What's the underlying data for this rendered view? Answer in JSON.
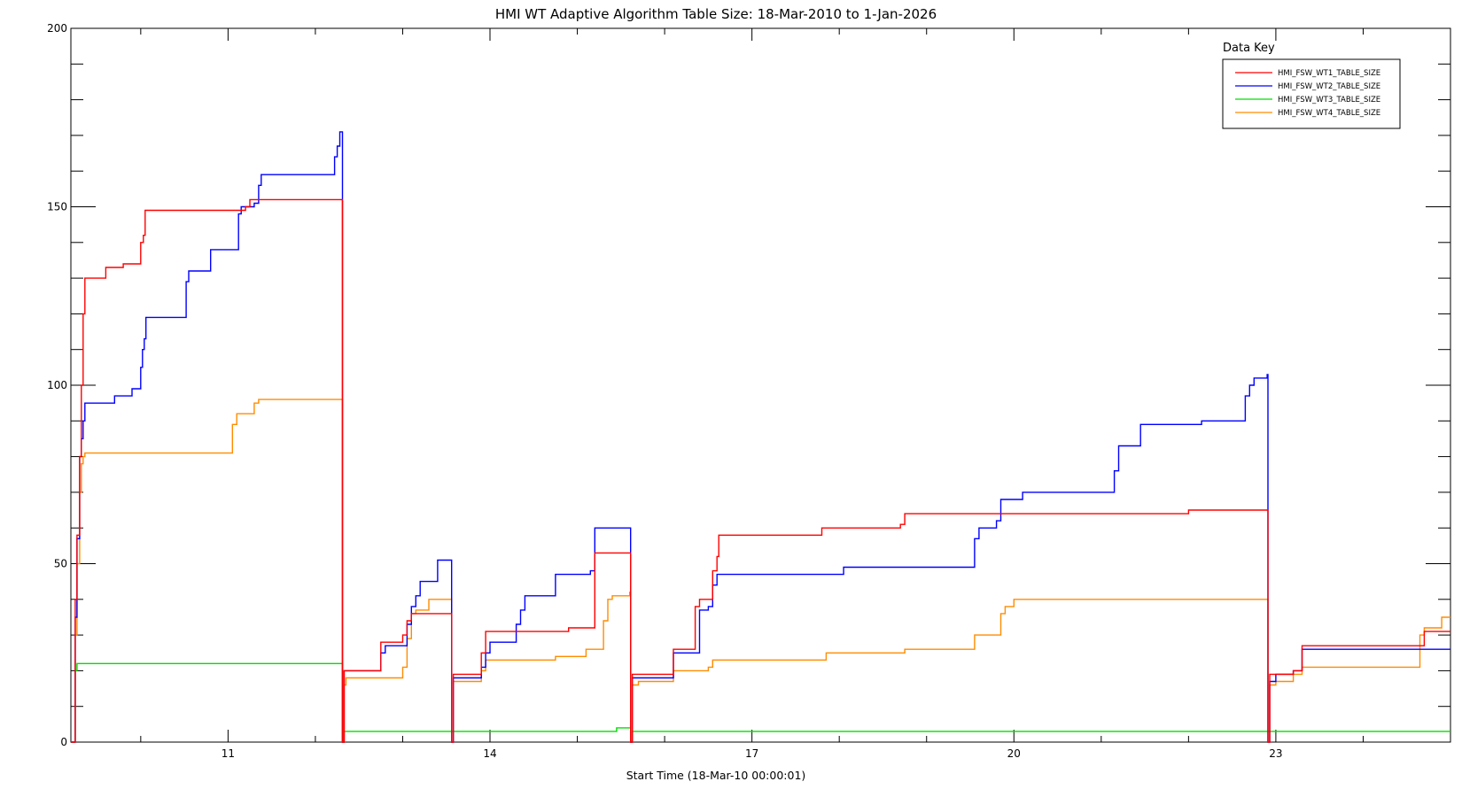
{
  "chart_data": {
    "type": "line",
    "title": "HMI WT Adaptive Algorithm Table Size: 18-Mar-2010 to 1-Jan-2026",
    "xlabel": "Start Time (18-Mar-10 00:00:01)",
    "ylabel": "",
    "xlim": [
      9.2,
      25.0
    ],
    "ylim": [
      0,
      200
    ],
    "xticks": [
      11,
      14,
      17,
      20,
      23
    ],
    "xtick_labels": [
      "11",
      "14",
      "17",
      "20",
      "23"
    ],
    "yticks": [
      0,
      50,
      100,
      150,
      200
    ],
    "ytick_labels": [
      "0",
      "50",
      "100",
      "150",
      "200"
    ],
    "grid": false,
    "legend": {
      "title": "Data Key",
      "position": "top-right"
    },
    "step": true,
    "series": [
      {
        "name": "HMI_FSW_WT1_TABLE_SIZE",
        "color": "#ff0000",
        "points": [
          [
            9.2,
            0
          ],
          [
            9.25,
            40
          ],
          [
            9.27,
            58
          ],
          [
            9.3,
            80
          ],
          [
            9.32,
            100
          ],
          [
            9.34,
            120
          ],
          [
            9.36,
            130
          ],
          [
            9.6,
            133
          ],
          [
            9.8,
            134
          ],
          [
            10.0,
            140
          ],
          [
            10.03,
            142
          ],
          [
            10.05,
            149
          ],
          [
            11.2,
            150
          ],
          [
            11.25,
            152
          ],
          [
            12.3,
            152
          ],
          [
            12.31,
            0
          ],
          [
            12.33,
            20
          ],
          [
            12.75,
            28
          ],
          [
            13.0,
            30
          ],
          [
            13.05,
            34
          ],
          [
            13.1,
            36
          ],
          [
            13.55,
            36
          ],
          [
            13.56,
            0
          ],
          [
            13.58,
            19
          ],
          [
            13.9,
            25
          ],
          [
            13.95,
            31
          ],
          [
            14.5,
            31
          ],
          [
            14.9,
            32
          ],
          [
            15.2,
            53
          ],
          [
            15.6,
            53
          ],
          [
            15.61,
            0
          ],
          [
            15.63,
            19
          ],
          [
            15.9,
            19
          ],
          [
            16.1,
            26
          ],
          [
            16.35,
            38
          ],
          [
            16.4,
            40
          ],
          [
            16.5,
            40
          ],
          [
            16.55,
            48
          ],
          [
            16.6,
            52
          ],
          [
            16.62,
            58
          ],
          [
            17.5,
            58
          ],
          [
            17.8,
            60
          ],
          [
            18.7,
            61
          ],
          [
            18.75,
            64
          ],
          [
            19.5,
            64
          ],
          [
            20.6,
            64
          ],
          [
            21.5,
            64
          ],
          [
            22.0,
            65
          ],
          [
            22.9,
            65
          ],
          [
            22.91,
            0
          ],
          [
            22.93,
            19
          ],
          [
            23.2,
            20
          ],
          [
            23.3,
            27
          ],
          [
            24.6,
            27
          ],
          [
            24.7,
            31
          ],
          [
            25.0,
            31
          ]
        ]
      },
      {
        "name": "HMI_FSW_WT2_TABLE_SIZE",
        "color": "#0000ff",
        "points": [
          [
            9.2,
            0
          ],
          [
            9.25,
            35
          ],
          [
            9.27,
            57
          ],
          [
            9.3,
            80
          ],
          [
            9.32,
            85
          ],
          [
            9.34,
            90
          ],
          [
            9.36,
            95
          ],
          [
            9.7,
            97
          ],
          [
            9.9,
            99
          ],
          [
            10.0,
            105
          ],
          [
            10.02,
            110
          ],
          [
            10.04,
            113
          ],
          [
            10.06,
            119
          ],
          [
            10.5,
            119
          ],
          [
            10.52,
            129
          ],
          [
            10.55,
            132
          ],
          [
            10.8,
            138
          ],
          [
            11.1,
            138
          ],
          [
            11.12,
            148
          ],
          [
            11.15,
            150
          ],
          [
            11.3,
            151
          ],
          [
            11.35,
            156
          ],
          [
            11.38,
            159
          ],
          [
            12.2,
            159
          ],
          [
            12.22,
            164
          ],
          [
            12.25,
            167
          ],
          [
            12.28,
            171
          ],
          [
            12.3,
            171
          ],
          [
            12.31,
            0
          ],
          [
            12.33,
            20
          ],
          [
            12.75,
            25
          ],
          [
            12.8,
            27
          ],
          [
            13.0,
            27
          ],
          [
            13.05,
            33
          ],
          [
            13.1,
            38
          ],
          [
            13.15,
            41
          ],
          [
            13.2,
            45
          ],
          [
            13.35,
            45
          ],
          [
            13.4,
            51
          ],
          [
            13.55,
            51
          ],
          [
            13.56,
            0
          ],
          [
            13.58,
            18
          ],
          [
            13.9,
            21
          ],
          [
            13.95,
            25
          ],
          [
            14.0,
            28
          ],
          [
            14.2,
            28
          ],
          [
            14.3,
            33
          ],
          [
            14.35,
            37
          ],
          [
            14.4,
            41
          ],
          [
            14.7,
            41
          ],
          [
            14.75,
            47
          ],
          [
            15.1,
            47
          ],
          [
            15.15,
            48
          ],
          [
            15.2,
            60
          ],
          [
            15.6,
            60
          ],
          [
            15.61,
            0
          ],
          [
            15.63,
            18
          ],
          [
            15.9,
            18
          ],
          [
            16.1,
            25
          ],
          [
            16.35,
            25
          ],
          [
            16.4,
            37
          ],
          [
            16.5,
            38
          ],
          [
            16.55,
            44
          ],
          [
            16.6,
            47
          ],
          [
            16.8,
            47
          ],
          [
            18.0,
            47
          ],
          [
            18.05,
            49
          ],
          [
            19.5,
            49
          ],
          [
            19.55,
            57
          ],
          [
            19.6,
            60
          ],
          [
            19.8,
            62
          ],
          [
            19.85,
            68
          ],
          [
            20.1,
            70
          ],
          [
            21.1,
            70
          ],
          [
            21.15,
            76
          ],
          [
            21.2,
            83
          ],
          [
            21.4,
            83
          ],
          [
            21.45,
            89
          ],
          [
            22.0,
            89
          ],
          [
            22.15,
            90
          ],
          [
            22.6,
            90
          ],
          [
            22.65,
            97
          ],
          [
            22.7,
            100
          ],
          [
            22.75,
            102
          ],
          [
            22.88,
            102
          ],
          [
            22.9,
            103
          ],
          [
            22.91,
            0
          ],
          [
            22.93,
            17
          ],
          [
            23.0,
            19
          ],
          [
            23.2,
            20
          ],
          [
            23.3,
            26
          ],
          [
            25.0,
            26
          ]
        ]
      },
      {
        "name": "HMI_FSW_WT3_TABLE_SIZE",
        "color": "#00dd00",
        "points": [
          [
            9.2,
            0
          ],
          [
            9.25,
            20
          ],
          [
            9.27,
            22
          ],
          [
            12.3,
            22
          ],
          [
            12.31,
            0
          ],
          [
            12.33,
            3
          ],
          [
            15.4,
            3
          ],
          [
            15.45,
            4
          ],
          [
            15.6,
            4
          ],
          [
            15.61,
            0
          ],
          [
            15.63,
            3
          ],
          [
            25.0,
            3
          ]
        ]
      },
      {
        "name": "HMI_FSW_WT4_TABLE_SIZE",
        "color": "#ff8c00",
        "points": [
          [
            9.2,
            0
          ],
          [
            9.25,
            30
          ],
          [
            9.27,
            50
          ],
          [
            9.3,
            70
          ],
          [
            9.32,
            78
          ],
          [
            9.34,
            80
          ],
          [
            9.36,
            81
          ],
          [
            11.0,
            81
          ],
          [
            11.05,
            89
          ],
          [
            11.1,
            92
          ],
          [
            11.3,
            95
          ],
          [
            11.35,
            96
          ],
          [
            12.3,
            96
          ],
          [
            12.31,
            0
          ],
          [
            12.33,
            16
          ],
          [
            12.35,
            18
          ],
          [
            12.75,
            18
          ],
          [
            13.0,
            21
          ],
          [
            13.05,
            29
          ],
          [
            13.1,
            36
          ],
          [
            13.15,
            37
          ],
          [
            13.3,
            40
          ],
          [
            13.55,
            40
          ],
          [
            13.56,
            0
          ],
          [
            13.58,
            17
          ],
          [
            13.9,
            20
          ],
          [
            13.95,
            23
          ],
          [
            14.0,
            23
          ],
          [
            14.7,
            23
          ],
          [
            14.75,
            24
          ],
          [
            15.1,
            26
          ],
          [
            15.2,
            26
          ],
          [
            15.3,
            34
          ],
          [
            15.35,
            40
          ],
          [
            15.4,
            41
          ],
          [
            15.6,
            42
          ],
          [
            15.61,
            0
          ],
          [
            15.63,
            16
          ],
          [
            15.7,
            17
          ],
          [
            16.1,
            20
          ],
          [
            16.35,
            20
          ],
          [
            16.5,
            21
          ],
          [
            16.55,
            23
          ],
          [
            17.0,
            23
          ],
          [
            17.8,
            23
          ],
          [
            17.85,
            25
          ],
          [
            18.7,
            25
          ],
          [
            18.75,
            26
          ],
          [
            19.5,
            26
          ],
          [
            19.55,
            30
          ],
          [
            19.8,
            30
          ],
          [
            19.85,
            36
          ],
          [
            19.9,
            38
          ],
          [
            20.0,
            40
          ],
          [
            22.9,
            40
          ],
          [
            22.91,
            0
          ],
          [
            22.93,
            16
          ],
          [
            23.0,
            17
          ],
          [
            23.2,
            19
          ],
          [
            23.3,
            21
          ],
          [
            24.6,
            21
          ],
          [
            24.65,
            30
          ],
          [
            24.7,
            32
          ],
          [
            24.9,
            35
          ],
          [
            25.0,
            35
          ]
        ]
      }
    ]
  }
}
